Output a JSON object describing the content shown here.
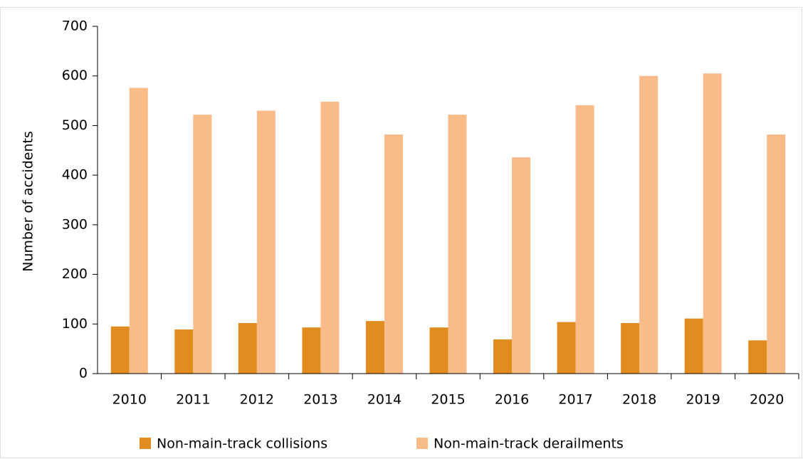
{
  "chart_data": {
    "type": "bar",
    "y_label": "Number of accidents",
    "categories": [
      "2010",
      "2011",
      "2012",
      "2013",
      "2014",
      "2015",
      "2016",
      "2017",
      "2018",
      "2019",
      "2020"
    ],
    "series": [
      {
        "name": "Non-main-track collisions",
        "color": "#e08c1e",
        "values": [
          95,
          89,
          102,
          93,
          106,
          93,
          69,
          104,
          102,
          111,
          67
        ]
      },
      {
        "name": "Non-main-track derailments",
        "color": "#f9bb88",
        "values": [
          576,
          522,
          530,
          548,
          482,
          522,
          436,
          541,
          600,
          605,
          482
        ]
      }
    ],
    "ylim": [
      0,
      700
    ],
    "yticks": [
      0,
      100,
      200,
      300,
      400,
      500,
      600,
      700
    ],
    "grid": false,
    "legend": "bottom"
  }
}
